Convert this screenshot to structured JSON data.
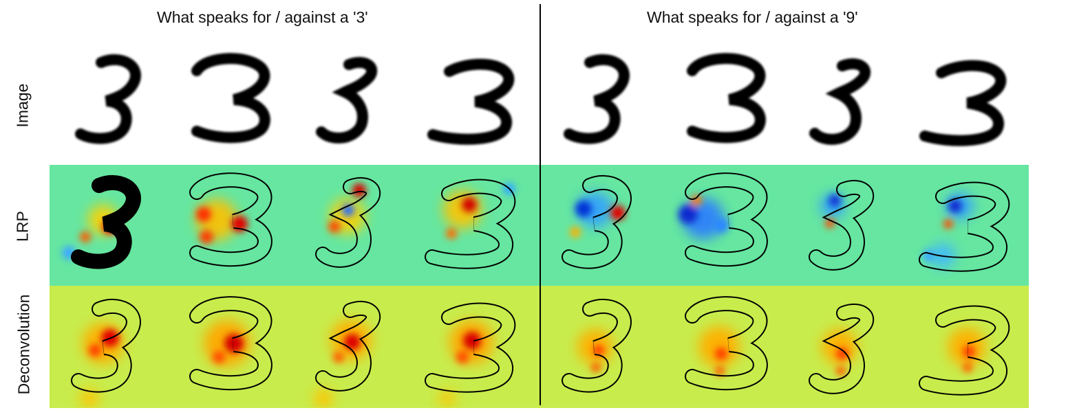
{
  "titles": {
    "left": "What speaks for / against a '3'",
    "right": "What speaks for / against a '9'"
  },
  "row_labels": {
    "image": "Image",
    "lrp": "LRP",
    "deconvolution": "Deconvolution"
  },
  "panels": [
    {
      "name": "for-against-3",
      "digits": [
        "3",
        "3",
        "3",
        "3"
      ]
    },
    {
      "name": "for-against-9",
      "digits": [
        "3",
        "3",
        "3",
        "3"
      ]
    }
  ],
  "colors": {
    "lrp_background": "#66e6a0",
    "deconv_background": "#c8ec4c",
    "positive_relevance": "#d10000",
    "negative_relevance": "#0a2ccf",
    "digit_ink": "#000000",
    "divider": "#000000"
  }
}
